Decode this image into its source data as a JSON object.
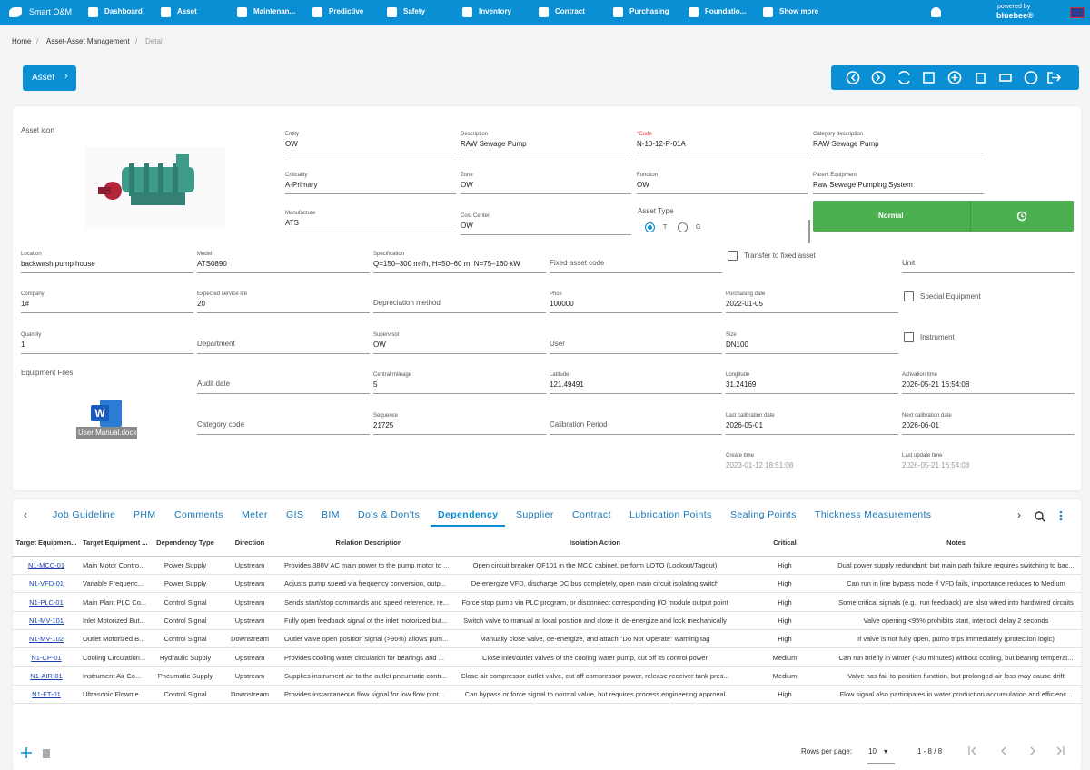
{
  "nav": {
    "brand": "Smart O&M",
    "items": [
      "Dashboard",
      "Asset",
      "Maintenan...",
      "Predictive",
      "Safety",
      "Inventory",
      "Contract",
      "Purchasing",
      "Foundatio...",
      "Show more"
    ],
    "powered_by": "powered by",
    "vendor": "bluebee®"
  },
  "breadcrumb": [
    "Home",
    "Asset-Asset Management",
    "Detail"
  ],
  "asset_button": "Asset",
  "form": {
    "asset_icon_label": "Asset icon",
    "files_label": "Equipment Files",
    "file_name": "User Manual.docx",
    "fields": [
      {
        "label": "Entity",
        "value": "OW"
      },
      {
        "label": "Description",
        "value": "RAW Sewage Pump"
      },
      {
        "label": "*Code",
        "value": "N-10-12-P-01A"
      },
      {
        "label": "Category description",
        "value": "RAW Sewage Pump"
      },
      {
        "label": "Criticality",
        "value": "A-Primary"
      },
      {
        "label": "Zone",
        "value": "OW"
      },
      {
        "label": "Function",
        "value": "OW"
      },
      {
        "label": "Parent Equipment",
        "value": "Raw Sewage Pumping System"
      },
      {
        "label": "Manufacture",
        "value": "ATS"
      },
      {
        "label": "Cost Center",
        "value": "OW"
      },
      {
        "label": "Location",
        "value": "backwash pump house"
      },
      {
        "label": "Model",
        "value": "ATS0890"
      },
      {
        "label": "Specification",
        "value": "Q=150–300 m³/h, H=50–60 m, N=75–160 kW"
      },
      {
        "label": "Fixed asset code"
      },
      {
        "label": "Unit"
      },
      {
        "label": "Company",
        "value": "1#"
      },
      {
        "label": "Expected service life",
        "value": "20"
      },
      {
        "label": "Depreciation method"
      },
      {
        "label": "Price",
        "value": "100000"
      },
      {
        "label": "Purchasing date",
        "value": "2022-01-05"
      },
      {
        "label": "Quantity",
        "value": "1"
      },
      {
        "label": "Department"
      },
      {
        "label": "Supervisor",
        "value": "OW"
      },
      {
        "label": "User"
      },
      {
        "label": "Size",
        "value": "DN100"
      },
      {
        "label": "Audit date"
      },
      {
        "label": "Central mileage",
        "value": "5"
      },
      {
        "label": "Latitude",
        "value": "121.49491"
      },
      {
        "label": "Longitude",
        "value": "31.24169"
      },
      {
        "label": "Activation time",
        "value": "2026-05-21 16:54:08"
      },
      {
        "label": "Category code"
      },
      {
        "label": "Sequence",
        "value": "21725"
      },
      {
        "label": "Calibration Period"
      },
      {
        "label": "Last calibration date",
        "value": "2026-05-01"
      },
      {
        "label": "Next calibration date",
        "value": "2026-06-01"
      },
      {
        "label": "Create time",
        "value": "2023-01-12 18:51:08"
      },
      {
        "label": "Last update time",
        "value": "2026-05-21 16:54:08"
      }
    ],
    "asset_type": {
      "label": "Asset Type",
      "options": [
        "T",
        "G"
      ]
    },
    "status": "Normal",
    "checkboxes": [
      "Transfer to fixed asset",
      "Special Equipment",
      "Instrument"
    ]
  },
  "tabs": {
    "items": [
      "Job Guideline",
      "PHM",
      "Comments",
      "Meter",
      "GIS",
      "BIM",
      "Do's & Don'ts",
      "Dependency",
      "Supplier",
      "Contract",
      "Lubrication Points",
      "Sealing Points",
      "Thickness Measurements"
    ],
    "active": "Dependency"
  },
  "table": {
    "columns": [
      "Target Equipmen...",
      "Target Equipment ...",
      "Dependency Type",
      "Direction",
      "Relation Description",
      "Isolation Action",
      "Critical",
      "Notes"
    ],
    "rows": [
      [
        "N1-MCC-01",
        "Main Motor Contro...",
        "Power Supply",
        "Upstream",
        "Provides 380V AC main power to the pump motor to ...",
        "Open circuit breaker QF101 in the MCC cabinet, perform LOTO (Lockout/Tagout)",
        "High",
        "Dual power supply redundant; but main path failure requires switching to bac..."
      ],
      [
        "N1-VFD-01",
        "Variable Frequenc...",
        "Power Supply",
        "Upstream",
        "Adjusts pump speed via frequency conversion, outp...",
        "De-energize VFD, discharge DC bus completely, open main circuit isolating switch",
        "High",
        "Can run in line bypass mode if VFD fails, importance reduces to Medium"
      ],
      [
        "N1-PLC-01",
        "Main Plant PLC Co...",
        "Control Signal",
        "Upstream",
        "Sends start/stop commands and speed reference, re...",
        "Force stop pump via PLC program, or disconnect corresponding I/O module output point",
        "High",
        "Some critical signals (e.g., run feedback) are also wired into hardwired circuits"
      ],
      [
        "N1-MV-101",
        "Inlet Motorized But...",
        "Control Signal",
        "Upstream",
        "Fully open feedback signal of the inlet motorized but...",
        "Switch valve to manual at local position and close it, de-energize and lock mechanically",
        "High",
        "Valve opening <95% prohibits start, interlock delay 2 seconds"
      ],
      [
        "N1-MV-102",
        "Outlet Motorized B...",
        "Control Signal",
        "Downstream",
        "Outlet valve open position signal (>95%) allows pum...",
        "Manually close valve, de-energize, and attach \"Do Not Operate\" warning tag",
        "High",
        "If valve is not fully open, pump trips immediately (protection logic)"
      ],
      [
        "N1-CP-01",
        "Cooling Circulation...",
        "Hydraulic Supply",
        "Upstream",
        "Provides cooling water circulation for bearings and ...",
        "Close inlet/outlet valves of the cooling water pump, cut off its control power",
        "Medium",
        "Can run briefly in winter (<30 minutes) without cooling, but bearing temperat..."
      ],
      [
        "N1-AIR-01",
        "Instrument Air Co...",
        "Pneumatic Supply",
        "Upstream",
        "Supplies instrument air to the outlet pneumatic contr...",
        "Close air compressor outlet valve, cut off compressor power, release receiver tank pres...",
        "Medium",
        "Valve has fail-to-position function, but prolonged air loss may cause drift"
      ],
      [
        "N1-FT-01",
        "Ultrasonic Flowme...",
        "Control Signal",
        "Downstream",
        "Provides instantaneous flow signal for low flow prot...",
        "Can bypass or force signal to normal value, but requires process engineering approval",
        "High",
        "Flow signal also participates in water production accumulation and efficienc..."
      ]
    ]
  },
  "pagination": {
    "rows_per_page_label": "Rows per page:",
    "rows_per_page": "10",
    "range": "1 - 8 / 8"
  }
}
